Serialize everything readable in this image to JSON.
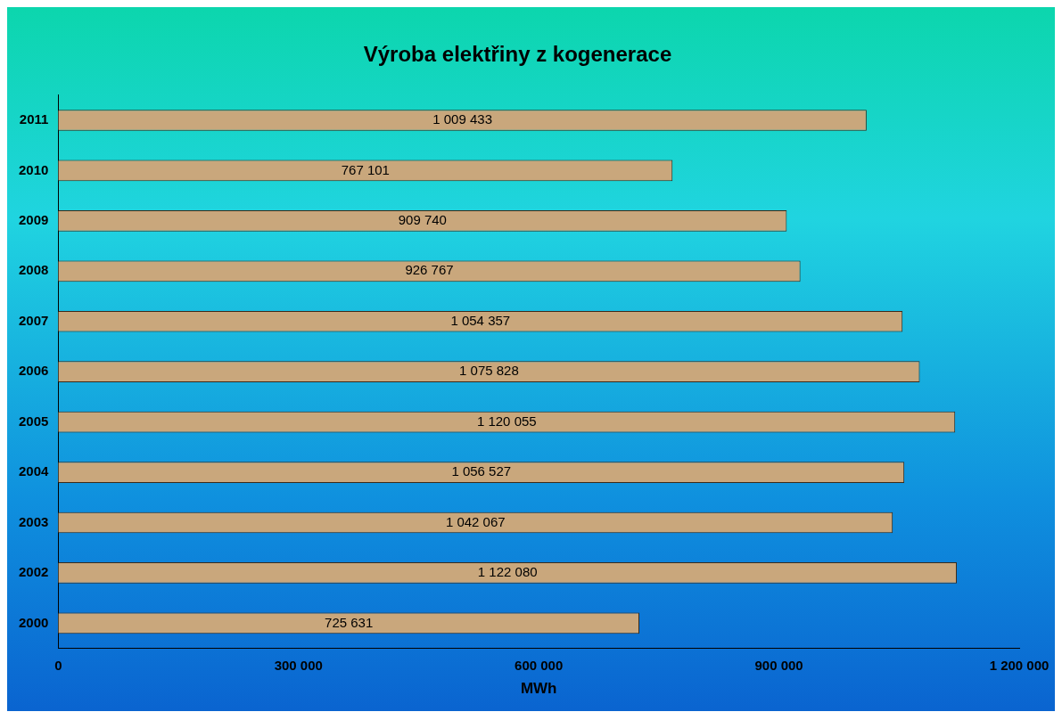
{
  "chart_data": {
    "type": "bar",
    "orientation": "horizontal",
    "title": "Výroba elektřiny z kogenerace",
    "xlabel": "MWh",
    "categories": [
      "2011",
      "2010",
      "2009",
      "2008",
      "2007",
      "2006",
      "2005",
      "2004",
      "2003",
      "2002",
      "2000"
    ],
    "values": [
      1009433,
      767101,
      909740,
      926767,
      1054357,
      1075828,
      1120055,
      1056527,
      1042067,
      1122080,
      725631
    ],
    "value_labels": [
      "1 009 433",
      "767 101",
      "909 740",
      "926 767",
      "1 054 357",
      "1 075 828",
      "1 120 055",
      "1 056 527",
      "1 042 067",
      "1 122 080",
      "725 631"
    ],
    "color": "#c9a77c",
    "xlim": [
      0,
      1200000
    ],
    "xticks": [
      0,
      {
        "value": 300000,
        "label": "300 000"
      },
      {
        "value": 600000,
        "label": "600 000"
      },
      {
        "value": 900000,
        "label": "900 000"
      },
      {
        "value": 1200000,
        "label": "1 200 000"
      }
    ],
    "grid": false,
    "legend": false
  }
}
